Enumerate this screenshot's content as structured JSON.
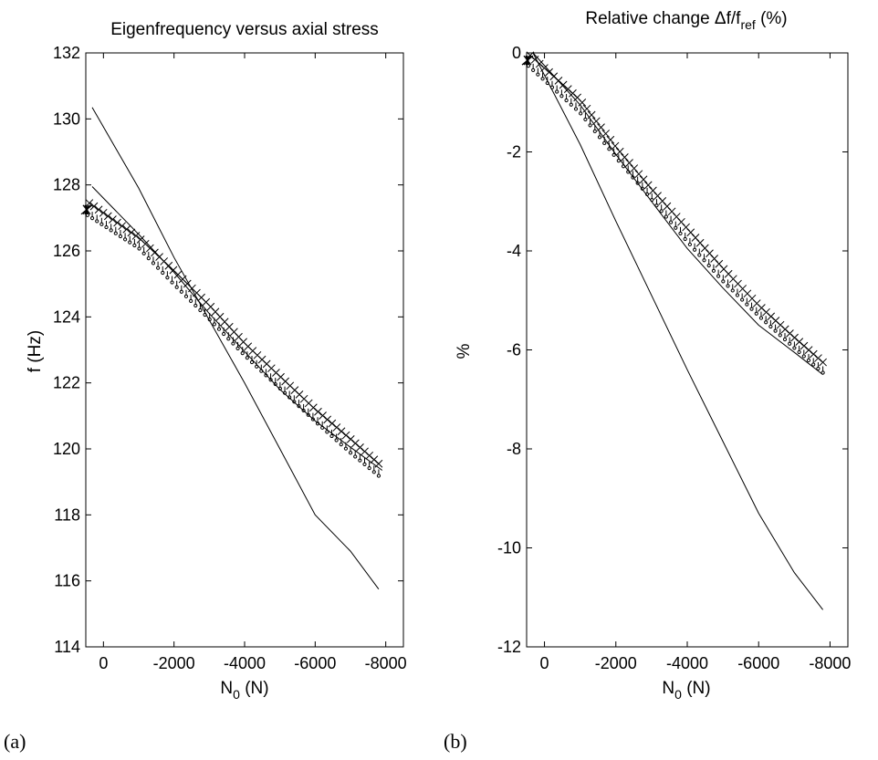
{
  "chart_data": [
    {
      "type": "line",
      "title": "Eigenfrequency versus axial stress",
      "xlabel": "N",
      "xlabel_sub": "0",
      "xlabel_unit": " (N)",
      "ylabel": "f (Hz)",
      "xlim": [
        500,
        -8500
      ],
      "ylim": [
        114,
        132
      ],
      "xticks": [
        0,
        -2000,
        -4000,
        -6000,
        -8000
      ],
      "yticks": [
        114,
        116,
        118,
        120,
        122,
        124,
        126,
        128,
        130,
        132
      ],
      "panel_label": "(a)",
      "series": [
        {
          "style": "line",
          "x": [
            320,
            -1000,
            -2000,
            -3000,
            -4000,
            -5000,
            -6000,
            -7000,
            -7800
          ],
          "values": [
            130.35,
            127.9,
            125.8,
            123.9,
            122.0,
            120.0,
            118.0,
            116.9,
            115.75
          ]
        },
        {
          "style": "line",
          "x": [
            320,
            -1000,
            -2000,
            -3000,
            -4000,
            -5000,
            -6000,
            -7000,
            -7900
          ],
          "values": [
            127.95,
            126.5,
            125.35,
            124.1,
            122.95,
            121.8,
            120.85,
            120.05,
            119.35
          ]
        },
        {
          "style": "cross",
          "x": [
            400,
            -1000,
            -2000,
            -3000,
            -4000,
            -5000,
            -6000,
            -7000,
            -7800
          ],
          "values": [
            127.45,
            126.4,
            125.4,
            124.35,
            123.2,
            122.2,
            121.2,
            120.3,
            119.55
          ]
        },
        {
          "style": "dot",
          "x": [
            450,
            -1000,
            -2000,
            -3000,
            -4000,
            -5000,
            -6000,
            -7000,
            -7800
          ],
          "values": [
            127.25,
            126.25,
            125.15,
            124.1,
            123.0,
            122.0,
            121.0,
            120.05,
            119.35
          ]
        }
      ]
    },
    {
      "type": "line",
      "title": "Relative change Δf/f",
      "title_sub": "ref",
      "title_tail": " (%)",
      "xlabel": "N",
      "xlabel_sub": "0",
      "xlabel_unit": " (N)",
      "ylabel": "%",
      "xlim": [
        500,
        -8500
      ],
      "ylim": [
        -12,
        0
      ],
      "xticks": [
        0,
        -2000,
        -4000,
        -6000,
        -8000
      ],
      "yticks": [
        -12,
        -10,
        -8,
        -6,
        -4,
        -2,
        0
      ],
      "panel_label": "(b)",
      "series": [
        {
          "style": "line",
          "x": [
            320,
            -1000,
            -2000,
            -3000,
            -4000,
            -5000,
            -6000,
            -7000,
            -7800
          ],
          "values": [
            0,
            -1.85,
            -3.4,
            -4.9,
            -6.4,
            -7.85,
            -9.3,
            -10.5,
            -11.25
          ]
        },
        {
          "style": "line",
          "x": [
            320,
            -1000,
            -2000,
            -3000,
            -4000,
            -5000,
            -6000,
            -7000,
            -7800
          ],
          "values": [
            0,
            -1.05,
            -2.05,
            -3.0,
            -3.95,
            -4.75,
            -5.5,
            -6.05,
            -6.5
          ]
        },
        {
          "style": "cross",
          "x": [
            400,
            -1000,
            -2000,
            -3000,
            -4000,
            -5000,
            -6000,
            -7000,
            -7800
          ],
          "values": [
            -0.05,
            -0.95,
            -1.9,
            -2.75,
            -3.55,
            -4.35,
            -5.1,
            -5.75,
            -6.25
          ]
        },
        {
          "style": "dot",
          "x": [
            450,
            -1000,
            -2000,
            -3000,
            -4000,
            -5000,
            -6000,
            -7000,
            -7800
          ],
          "values": [
            -0.15,
            -1.1,
            -2.0,
            -2.85,
            -3.7,
            -4.5,
            -5.2,
            -5.85,
            -6.35
          ]
        }
      ]
    }
  ]
}
